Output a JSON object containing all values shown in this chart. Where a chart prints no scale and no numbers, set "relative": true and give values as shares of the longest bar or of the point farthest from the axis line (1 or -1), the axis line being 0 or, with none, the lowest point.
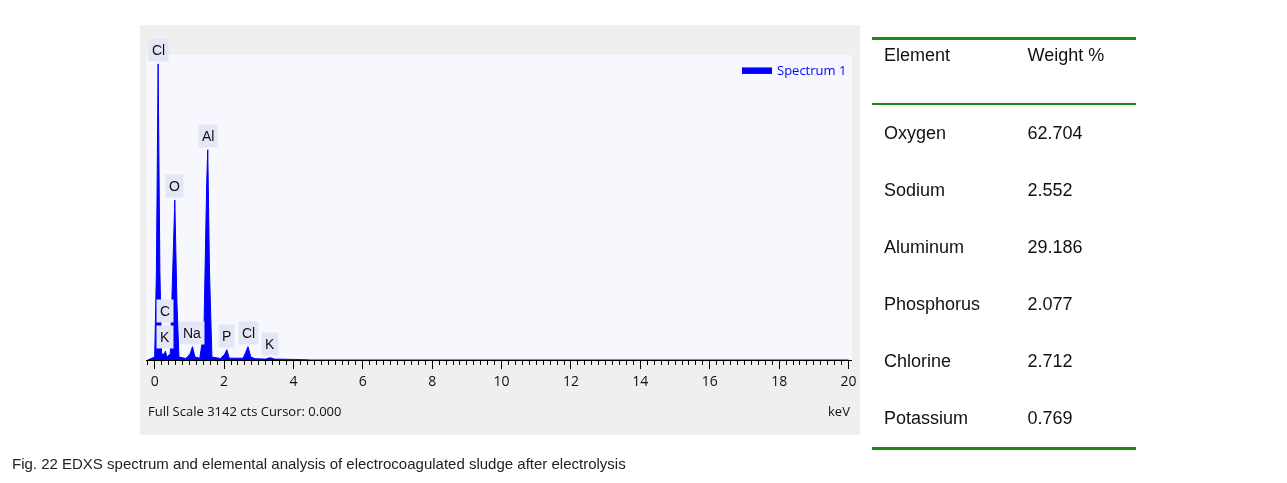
{
  "chart_data": [
    {
      "type": "area",
      "relative": true,
      "xlabel": "keV",
      "xlim": [
        -0.25,
        20.1
      ],
      "xticks": [
        0,
        2,
        4,
        6,
        8,
        10,
        12,
        14,
        16,
        18,
        20
      ],
      "legend": "top right",
      "grid": false,
      "series": [
        {
          "name": "Spectrum 1",
          "color": "#0000ff",
          "x": [
            -0.2,
            0.0,
            0.05,
            0.1,
            0.15,
            0.2,
            0.28,
            0.31,
            0.35,
            0.45,
            0.52,
            0.58,
            0.64,
            0.7,
            0.9,
            1.02,
            1.09,
            1.16,
            1.3,
            1.42,
            1.5,
            1.53,
            1.58,
            1.65,
            1.9,
            2.02,
            2.08,
            2.15,
            2.55,
            2.62,
            2.69,
            2.77,
            2.9,
            3.2,
            3.33,
            3.45,
            4.0,
            4.3,
            4.5,
            20
          ],
          "values": [
            0,
            0.01,
            0.3,
            1.0,
            0.3,
            0.02,
            0.02,
            0.03,
            0.01,
            0.02,
            0.3,
            0.54,
            0.2,
            0.01,
            0.005,
            0.02,
            0.045,
            0.01,
            0.006,
            0.1,
            0.6,
            0.71,
            0.3,
            0.01,
            0.005,
            0.02,
            0.035,
            0.006,
            0.006,
            0.025,
            0.045,
            0.01,
            0.004,
            0.003,
            0.008,
            0.003,
            0.002,
            0.001,
            0,
            0
          ]
        }
      ],
      "annotations": [
        {
          "text": "Cl",
          "x": 0.1,
          "y": 1.0
        },
        {
          "text": "O",
          "x": 0.58,
          "y": 0.54
        },
        {
          "text": "Al",
          "x": 1.53,
          "y": 0.71
        },
        {
          "text": "K",
          "x": 0.3,
          "y": 0.03
        },
        {
          "text": "C",
          "x": 0.31,
          "y": 0.03
        },
        {
          "text": "Na",
          "x": 1.09,
          "y": 0.045
        },
        {
          "text": "P",
          "x": 2.08,
          "y": 0.035
        },
        {
          "text": "Cl",
          "x": 2.69,
          "y": 0.045
        },
        {
          "text": "K",
          "x": 3.33,
          "y": 0.008
        },
        "Full Scale 3142 cts Cursor: 0.000",
        "Fig. 22  EDXS spectrum and elemental analysis of electrocoagulated sludge after electrolysis"
      ]
    },
    {
      "type": "other",
      "xlabel": "Element",
      "ylabel": "Weight %",
      "data_labels": true,
      "categories": [
        "Oxygen",
        "Sodium",
        "Aluminum",
        "Phosphorus",
        "Chlorine",
        "Potassium"
      ],
      "values": [
        62.704,
        2.552,
        29.186,
        2.077,
        2.712,
        0.769
      ]
    }
  ]
}
